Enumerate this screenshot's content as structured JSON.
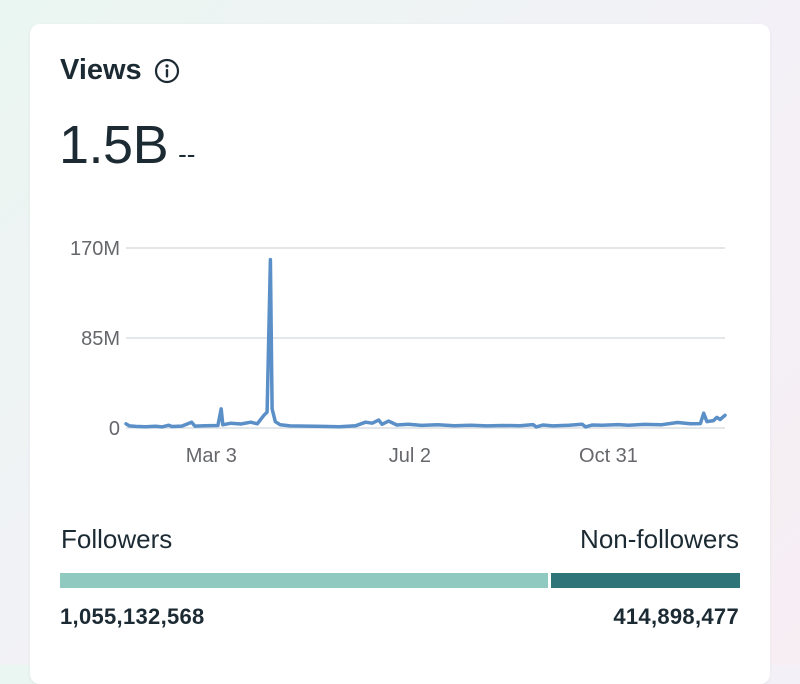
{
  "card": {
    "title": "Views",
    "info_icon": "info-icon",
    "metric_value": "1.5B",
    "metric_change": "--"
  },
  "colors": {
    "line": "#5b8fc7",
    "followers_bar": "#8fc9bf",
    "nonfollowers_bar": "#2f7479",
    "gridline": "#dcdfe3",
    "text": "#1c2b33",
    "muted": "#65676b"
  },
  "chart_data": {
    "type": "line",
    "title": "",
    "xlabel": "",
    "ylabel": "",
    "ylim": [
      0,
      170000000
    ],
    "yticks": [
      {
        "value": 0,
        "label": "0"
      },
      {
        "value": 85000000,
        "label": "85M"
      },
      {
        "value": 170000000,
        "label": "170M"
      }
    ],
    "xticks": [
      {
        "day": 52,
        "label": "Mar 3"
      },
      {
        "day": 173,
        "label": "Jul 2"
      },
      {
        "day": 294,
        "label": "Oct 31"
      }
    ],
    "xrange": [
      0,
      365
    ],
    "series": [
      {
        "name": "Views",
        "points": [
          [
            0,
            4000000
          ],
          [
            2,
            2000000
          ],
          [
            6,
            1500000
          ],
          [
            12,
            1200000
          ],
          [
            18,
            1600000
          ],
          [
            22,
            1000000
          ],
          [
            26,
            2600000
          ],
          [
            28,
            1400000
          ],
          [
            34,
            1800000
          ],
          [
            40,
            5500000
          ],
          [
            42,
            1800000
          ],
          [
            48,
            2200000
          ],
          [
            56,
            2400000
          ],
          [
            58,
            18000000
          ],
          [
            59,
            3000000
          ],
          [
            64,
            4500000
          ],
          [
            70,
            3800000
          ],
          [
            76,
            5500000
          ],
          [
            80,
            4000000
          ],
          [
            84,
            12000000
          ],
          [
            86,
            15000000
          ],
          [
            88,
            159000000
          ],
          [
            89,
            18000000
          ],
          [
            91,
            6000000
          ],
          [
            94,
            3000000
          ],
          [
            100,
            2000000
          ],
          [
            110,
            1800000
          ],
          [
            120,
            1500000
          ],
          [
            130,
            1200000
          ],
          [
            140,
            2200000
          ],
          [
            146,
            5500000
          ],
          [
            150,
            4500000
          ],
          [
            154,
            7500000
          ],
          [
            156,
            3500000
          ],
          [
            160,
            6500000
          ],
          [
            165,
            2800000
          ],
          [
            172,
            3500000
          ],
          [
            180,
            2500000
          ],
          [
            190,
            3000000
          ],
          [
            200,
            2200000
          ],
          [
            210,
            2600000
          ],
          [
            220,
            2000000
          ],
          [
            230,
            2400000
          ],
          [
            240,
            2200000
          ],
          [
            248,
            3200000
          ],
          [
            250,
            1000000
          ],
          [
            254,
            2800000
          ],
          [
            260,
            2000000
          ],
          [
            270,
            2600000
          ],
          [
            278,
            3600000
          ],
          [
            280,
            1000000
          ],
          [
            284,
            2800000
          ],
          [
            290,
            2600000
          ],
          [
            300,
            3200000
          ],
          [
            306,
            2600000
          ],
          [
            316,
            3400000
          ],
          [
            326,
            3000000
          ],
          [
            336,
            5200000
          ],
          [
            344,
            4000000
          ],
          [
            350,
            4200000
          ],
          [
            352,
            14000000
          ],
          [
            354,
            6000000
          ],
          [
            358,
            7000000
          ],
          [
            360,
            10000000
          ],
          [
            362,
            8000000
          ],
          [
            365,
            12000000
          ]
        ]
      }
    ]
  },
  "split": {
    "left_label": "Followers",
    "right_label": "Non-followers",
    "left_value_text": "1,055,132,568",
    "right_value_text": "414,898,477",
    "left_value": 1055132568,
    "right_value": 414898477
  }
}
